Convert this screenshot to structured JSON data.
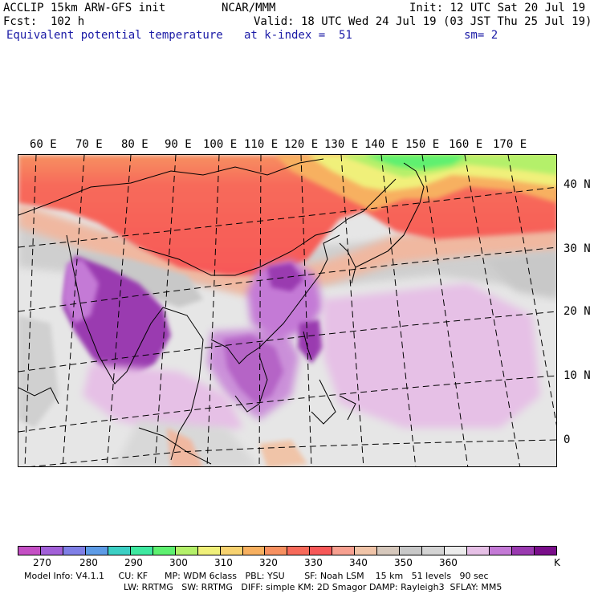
{
  "header": {
    "line1_left": "ACCLIP 15km ARW-GFS init",
    "line1_mid": "NCAR/MMM",
    "line1_right": "Init: 12 UTC Sat 20 Jul 19",
    "line2_left": "Fcst:  102 h",
    "line2_right": "Valid: 18 UTC Wed 24 Jul 19 (03 JST Thu 25 Jul 19)",
    "line3_left": "Equivalent potential temperature",
    "line3_mid": "at k-index =  51",
    "line3_right": "sm= 2"
  },
  "map": {
    "lon_labels": [
      "60 E",
      "70 E",
      "80 E",
      "90 E",
      "100 E",
      "110 E",
      "120 E",
      "130 E",
      "140 E",
      "150 E",
      "160 E",
      "170 E"
    ],
    "lat_labels": [
      "40 N",
      "30 N",
      "20 N",
      "10 N",
      "0"
    ]
  },
  "colorbar": {
    "unit": "K",
    "tick_labels": [
      "270",
      "280",
      "290",
      "300",
      "310",
      "320",
      "330",
      "340",
      "350",
      "360"
    ],
    "colors": [
      "#c44fc4",
      "#a260d8",
      "#7f7fe6",
      "#5d9be6",
      "#3ccfc4",
      "#3ee8a0",
      "#5ef070",
      "#b4f06a",
      "#f0f07a",
      "#f7d270",
      "#f7b060",
      "#f79060",
      "#f76a5a",
      "#f75858",
      "#f7a090",
      "#f0c4a8",
      "#d6c8bc",
      "#c8c8c8",
      "#d4d4d4",
      "#ececec",
      "#e6c0e6",
      "#c47ad6",
      "#9a3ab0",
      "#7a0e8a"
    ]
  },
  "footer": {
    "line1": "Model Info: V4.1.1     CU: KF      MP: WDM 6class   PBL: YSU       SF: Noah LSM    15 km   51 levels   90 sec",
    "line2": "LW: RRTMG   SW: RRTMG   DIFF: simple KM: 2D Smagor DAMP: Rayleigh3  SFLAY: MM5"
  }
}
